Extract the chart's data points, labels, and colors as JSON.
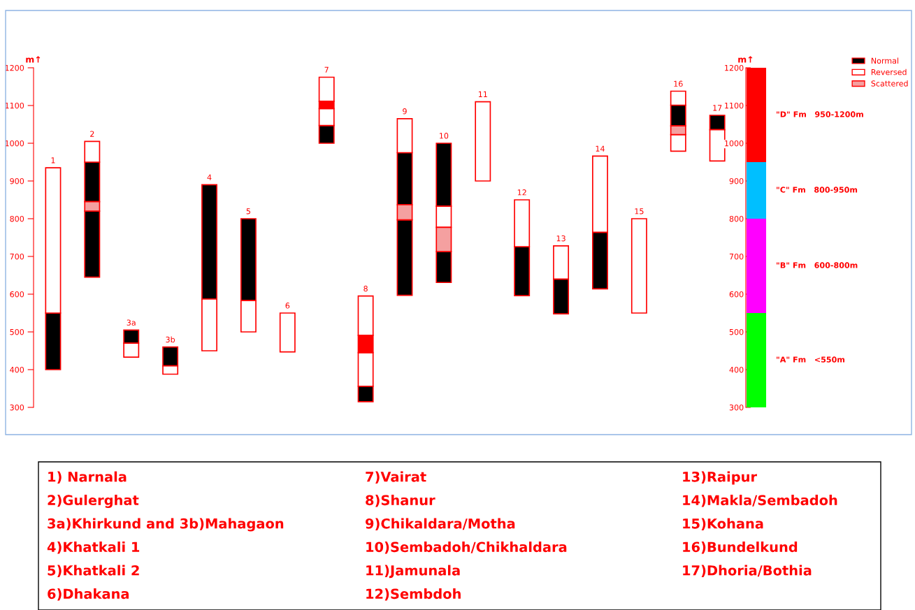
{
  "chart_data": {
    "type": "bar",
    "categories": [
      "1",
      "2",
      "3a",
      "3b",
      "4",
      "5",
      "6",
      "7",
      "8",
      "9",
      "10",
      "11",
      "12",
      "13",
      "14",
      "15",
      "16",
      "17",
      null
    ],
    "ylabel": "m↑",
    "y2label": "m↑",
    "ylim": [
      300,
      1200
    ],
    "yticks": [
      300,
      400,
      500,
      600,
      700,
      800,
      900,
      1000,
      1100,
      1200
    ],
    "y2lim": [
      300,
      1200
    ],
    "y2ticks": [
      300,
      400,
      500,
      600,
      700,
      800,
      900,
      1000,
      1100,
      1200
    ],
    "legend": "top right",
    "tick_labels": "y",
    "series": [
      {
        "name": "Normal",
        "color": "#000000",
        "base": [
          400,
          645,
          470,
          410,
          587,
          583,
          null,
          1000,
          315,
          597,
          631,
          null,
          596,
          548,
          614,
          null,
          1046,
          1036,
          null
        ],
        "values": [
          150,
          175,
          35,
          50,
          303,
          217,
          null,
          47,
          41,
          200,
          82,
          null,
          130,
          92,
          150,
          null,
          55,
          38,
          null
        ]
      },
      {
        "color": "#000000",
        "base": [
          null,
          845,
          null,
          null,
          null,
          null,
          null,
          null,
          null,
          837,
          833,
          null,
          null,
          null,
          null,
          null,
          null,
          null,
          null
        ],
        "values": [
          null,
          105,
          null,
          null,
          null,
          null,
          null,
          null,
          null,
          138,
          167,
          null,
          null,
          null,
          null,
          null,
          null,
          null,
          null
        ]
      },
      {
        "name": "Reversed",
        "color": "#ffffff",
        "base": [
          550,
          950,
          433,
          388,
          450,
          500,
          447,
          1047,
          356,
          975,
          777,
          900,
          726,
          640,
          764,
          550,
          979,
          953,
          null
        ],
        "values": [
          385,
          55,
          37,
          22,
          137,
          83,
          103,
          45,
          89,
          90,
          56,
          210,
          124,
          88,
          202,
          250,
          44,
          83,
          null
        ]
      },
      {
        "color": "#ffffff",
        "base": [
          null,
          null,
          null,
          null,
          null,
          null,
          null,
          1111,
          491,
          null,
          null,
          null,
          null,
          null,
          null,
          null,
          1101,
          null,
          null
        ],
        "values": [
          null,
          null,
          null,
          null,
          null,
          null,
          null,
          64,
          104,
          null,
          null,
          null,
          null,
          null,
          null,
          null,
          37,
          null,
          null
        ]
      },
      {
        "name": "Scattered",
        "color": "#f4a0a0",
        "base": [
          null,
          820,
          null,
          null,
          null,
          null,
          null,
          null,
          null,
          797,
          713,
          null,
          null,
          null,
          null,
          null,
          1023,
          null,
          null
        ],
        "values": [
          null,
          25,
          null,
          null,
          null,
          null,
          null,
          null,
          null,
          40,
          64,
          null,
          null,
          null,
          null,
          null,
          23,
          null,
          null
        ]
      },
      {
        "color": "#ff0000",
        "base": [
          null,
          null,
          null,
          null,
          null,
          null,
          null,
          1092,
          445,
          null,
          null,
          null,
          null,
          null,
          null,
          null,
          null,
          null,
          null
        ],
        "values": [
          null,
          null,
          null,
          null,
          null,
          null,
          null,
          19,
          46,
          null,
          null,
          null,
          null,
          null,
          null,
          null,
          null,
          null,
          null
        ]
      },
      {
        "name": "\"A\" Fm   <550m",
        "color": "#00ff00",
        "axis": "y2",
        "base": [
          null,
          null,
          null,
          null,
          null,
          null,
          null,
          null,
          null,
          null,
          null,
          null,
          null,
          null,
          null,
          null,
          null,
          null,
          300
        ],
        "values": [
          null,
          null,
          null,
          null,
          null,
          null,
          null,
          null,
          null,
          null,
          null,
          null,
          null,
          null,
          null,
          null,
          null,
          null,
          250
        ]
      },
      {
        "name": "\"B\" Fm   600-800m",
        "color": "#ff00ff",
        "axis": "y2",
        "base": [
          null,
          null,
          null,
          null,
          null,
          null,
          null,
          null,
          null,
          null,
          null,
          null,
          null,
          null,
          null,
          null,
          null,
          null,
          550
        ],
        "values": [
          null,
          null,
          null,
          null,
          null,
          null,
          null,
          null,
          null,
          null,
          null,
          null,
          null,
          null,
          null,
          null,
          null,
          null,
          250
        ]
      },
      {
        "name": "\"C\" Fm   800-950m",
        "color": "#00bfff",
        "axis": "y2",
        "base": [
          null,
          null,
          null,
          null,
          null,
          null,
          null,
          null,
          null,
          null,
          null,
          null,
          null,
          null,
          null,
          null,
          null,
          null,
          800
        ],
        "values": [
          null,
          null,
          null,
          null,
          null,
          null,
          null,
          null,
          null,
          null,
          null,
          null,
          null,
          null,
          null,
          null,
          null,
          null,
          150
        ]
      },
      {
        "name": "\"D\" Fm   950-1200m",
        "color": "#ff0000",
        "axis": "y2",
        "base": [
          null,
          null,
          null,
          null,
          null,
          null,
          null,
          null,
          null,
          null,
          null,
          null,
          null,
          null,
          null,
          null,
          null,
          null,
          950
        ],
        "values": [
          null,
          null,
          null,
          null,
          null,
          null,
          null,
          null,
          null,
          null,
          null,
          null,
          null,
          null,
          null,
          null,
          null,
          null,
          250
        ]
      }
    ],
    "annotations": [
      "1) Narnala",
      "2)Gulerghat",
      "3a)Khirkund and 3b)Mahagaon",
      "4)Khatkali 1",
      "5)Khatkali 2",
      "6)Dhakana",
      "7)Vairat",
      "8)Shanur",
      "9)Chikaldara/Motha",
      "10)Sembadoh/Chikhaldara",
      "11)Jamunala",
      "12)Sembdoh",
      "13)Raipur",
      "14)Makla/Sembadoh",
      "15)Kohana",
      "16)Bundelkund",
      "17)Dhoria/Bothia"
    ]
  }
}
